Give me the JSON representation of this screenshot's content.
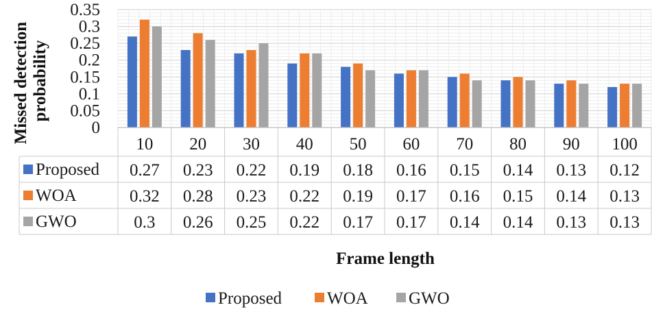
{
  "chart_data": {
    "type": "bar",
    "title": "",
    "xlabel": "Frame length",
    "ylabel": "Missed detection probability",
    "ylabel_lines": [
      "Missed detection",
      "probability"
    ],
    "ylim": [
      0,
      0.35
    ],
    "ytick_labels": [
      "0",
      "0.05",
      "0.1",
      "0.15",
      "0.2",
      "0.25",
      "0.3",
      "0.35"
    ],
    "ytick_values": [
      0,
      0.05,
      0.1,
      0.15,
      0.2,
      0.25,
      0.3,
      0.35
    ],
    "grid": true,
    "legend_position": "bottom",
    "data_table": true,
    "categories": [
      "10",
      "20",
      "30",
      "40",
      "50",
      "60",
      "70",
      "80",
      "90",
      "100"
    ],
    "series": [
      {
        "name": "Proposed",
        "color": "#4472C4",
        "values": [
          0.27,
          0.23,
          0.22,
          0.19,
          0.18,
          0.16,
          0.15,
          0.14,
          0.13,
          0.12
        ],
        "labels": [
          "0.27",
          "0.23",
          "0.22",
          "0.19",
          "0.18",
          "0.16",
          "0.15",
          "0.14",
          "0.13",
          "0.12"
        ]
      },
      {
        "name": "WOA",
        "color": "#ED7D31",
        "values": [
          0.32,
          0.28,
          0.23,
          0.22,
          0.19,
          0.17,
          0.16,
          0.15,
          0.14,
          0.13
        ],
        "labels": [
          "0.32",
          "0.28",
          "0.23",
          "0.22",
          "0.19",
          "0.17",
          "0.16",
          "0.15",
          "0.14",
          "0.13"
        ]
      },
      {
        "name": "GWO",
        "color": "#A5A5A5",
        "values": [
          0.3,
          0.26,
          0.25,
          0.22,
          0.17,
          0.17,
          0.14,
          0.14,
          0.13,
          0.13
        ],
        "labels": [
          "0.3",
          "0.26",
          "0.25",
          "0.22",
          "0.17",
          "0.17",
          "0.14",
          "0.14",
          "0.13",
          "0.13"
        ]
      }
    ]
  }
}
